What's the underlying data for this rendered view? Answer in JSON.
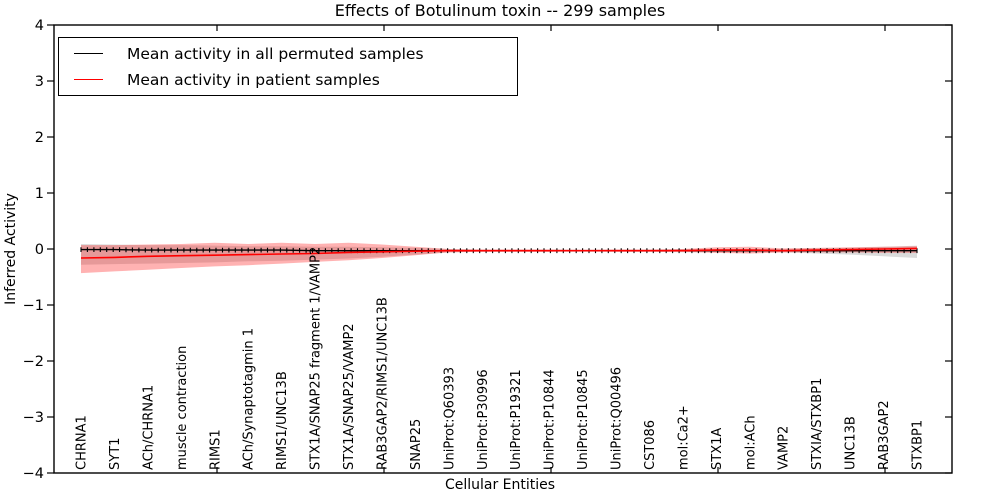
{
  "chart_data": {
    "type": "line",
    "title": "Effects of Botulinum toxin -- 299 samples",
    "xlabel": "Cellular Entities",
    "ylabel": "Inferred Activity",
    "ylim": [
      -4,
      4
    ],
    "ytick_values": [
      4,
      3,
      2,
      1,
      0,
      -1,
      -2,
      -3,
      -4
    ],
    "ytick_labels": [
      "4",
      "3",
      "2",
      "1",
      "0",
      "−1",
      "−2",
      "−3",
      "−4"
    ],
    "grid": false,
    "legend_position": "upper left",
    "background_color": "#ffffff",
    "categories": [
      "CHRNA1",
      "SYT1",
      "ACh/CHRNA1",
      "muscle contraction",
      "RIMS1",
      "ACh/Synaptotagmin 1",
      "RIMS1/UNC13B",
      "STX1A/SNAP25 fragment 1/VAMP2",
      "STX1A/SNAP25/VAMP2",
      "RAB3GAP2/RIMS1/UNC13B",
      "SNAP25",
      "UniProt:Q60393",
      "UniProt:P30996",
      "UniProt:P19321",
      "UniProt:P10844",
      "UniProt:P10845",
      "UniProt:Q00496",
      "CST086",
      "mol:Ca2+",
      "STX1A",
      "mol:ACh",
      "VAMP2",
      "STXIA/STXBP1",
      "UNC13B",
      "RAB3GAP2",
      "STXBP1"
    ],
    "series": [
      {
        "name": "Mean activity in all permuted samples",
        "color": "#000000",
        "band_color": "rgba(0,0,0,0.14)",
        "values": [
          -0.01,
          -0.01,
          -0.02,
          -0.02,
          -0.02,
          -0.02,
          -0.02,
          -0.03,
          -0.03,
          -0.03,
          -0.03,
          -0.03,
          -0.03,
          -0.03,
          -0.03,
          -0.03,
          -0.03,
          -0.03,
          -0.03,
          -0.03,
          -0.03,
          -0.03,
          -0.03,
          -0.03,
          -0.03,
          -0.03
        ],
        "band_upper": [
          0.09,
          0.08,
          0.07,
          0.07,
          0.06,
          0.05,
          0.05,
          0.04,
          0.04,
          0.03,
          0.02,
          0.0,
          -0.01,
          -0.01,
          -0.01,
          -0.01,
          -0.01,
          -0.01,
          0.0,
          0.0,
          0.0,
          0.0,
          0.01,
          0.02,
          0.04,
          0.06
        ],
        "band_lower": [
          -0.28,
          -0.27,
          -0.26,
          -0.25,
          -0.24,
          -0.22,
          -0.21,
          -0.19,
          -0.17,
          -0.14,
          -0.1,
          -0.06,
          -0.05,
          -0.05,
          -0.05,
          -0.05,
          -0.05,
          -0.05,
          -0.06,
          -0.06,
          -0.06,
          -0.06,
          -0.08,
          -0.1,
          -0.13,
          -0.16
        ]
      },
      {
        "name": "Mean activity in patient samples",
        "color": "#ff0000",
        "band_color": "rgba(255,0,0,0.30)",
        "values": [
          -0.16,
          -0.15,
          -0.13,
          -0.12,
          -0.11,
          -0.1,
          -0.09,
          -0.08,
          -0.06,
          -0.05,
          -0.04,
          -0.03,
          -0.03,
          -0.03,
          -0.03,
          -0.03,
          -0.03,
          -0.03,
          -0.03,
          -0.02,
          -0.02,
          -0.03,
          -0.02,
          -0.01,
          0.0,
          0.01
        ],
        "band_upper": [
          0.07,
          0.07,
          0.08,
          0.09,
          0.11,
          0.09,
          0.11,
          0.09,
          0.11,
          0.08,
          0.04,
          0.0,
          -0.01,
          -0.01,
          -0.01,
          -0.02,
          -0.01,
          -0.01,
          0.0,
          0.03,
          0.04,
          0.01,
          0.02,
          0.03,
          0.04,
          0.05
        ],
        "band_lower": [
          -0.43,
          -0.4,
          -0.37,
          -0.34,
          -0.31,
          -0.29,
          -0.26,
          -0.23,
          -0.2,
          -0.16,
          -0.11,
          -0.06,
          -0.05,
          -0.05,
          -0.05,
          -0.04,
          -0.05,
          -0.05,
          -0.05,
          -0.07,
          -0.08,
          -0.06,
          -0.06,
          -0.06,
          -0.07,
          -0.07
        ]
      }
    ],
    "marker_count": 131
  }
}
